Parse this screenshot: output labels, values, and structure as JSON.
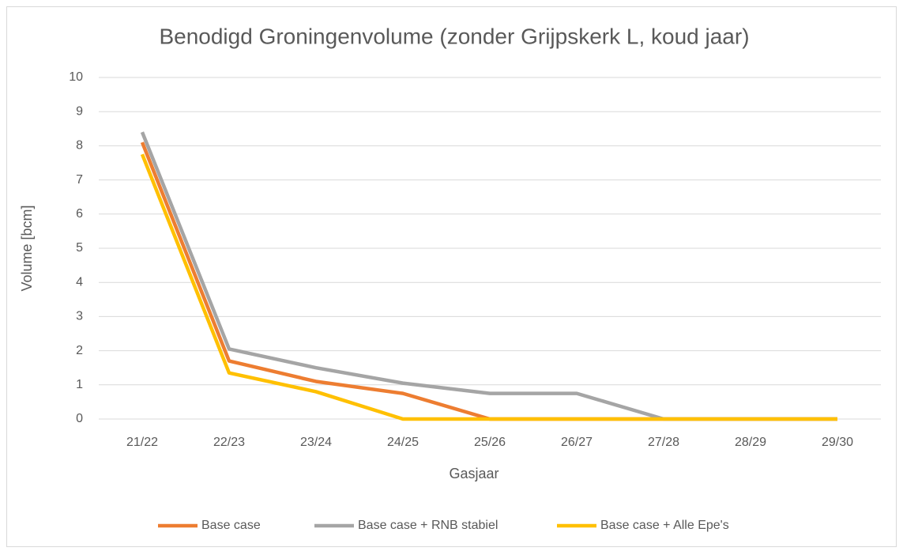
{
  "chart_data": {
    "type": "line",
    "title": "Benodigd Groningenvolume (zonder Grijpskerk L, koud jaar)",
    "x_label": "Gasjaar",
    "y_label": "Volume [bcm]",
    "categories": [
      "21/22",
      "22/23",
      "23/24",
      "24/25",
      "25/26",
      "26/27",
      "27/28",
      "28/29",
      "29/30"
    ],
    "series": [
      {
        "name": "Base case",
        "color": "#ed7d31",
        "values": [
          8.1,
          1.7,
          1.1,
          0.75,
          0,
          0,
          0,
          0,
          0
        ]
      },
      {
        "name": "Base case + RNB stabiel",
        "color": "#a5a5a5",
        "values": [
          8.4,
          2.05,
          1.5,
          1.05,
          0.75,
          0.75,
          0,
          0,
          0
        ]
      },
      {
        "name": "Base case + Alle Epe's",
        "color": "#ffc000",
        "values": [
          7.75,
          1.35,
          0.8,
          0,
          0,
          0,
          0,
          0,
          0
        ]
      }
    ],
    "ylim": [
      0,
      10
    ],
    "yticks": [
      0,
      1,
      2,
      3,
      4,
      5,
      6,
      7,
      8,
      9,
      10
    ],
    "grid": true,
    "legend": "bottom"
  }
}
